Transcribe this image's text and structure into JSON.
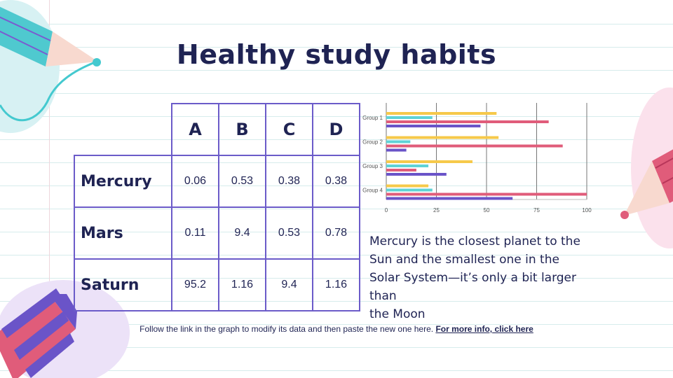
{
  "slide": {
    "title": "Healthy study habits",
    "description": [
      "Mercury is the closest planet to the",
      "Sun and the smallest one in the",
      "Solar System—it’s only a bit larger",
      "than",
      "the Moon"
    ],
    "footer_text": "Follow the link in the graph to modify its data and then paste the new one here. ",
    "footer_link": "For more info, click here"
  },
  "table": {
    "columns": [
      "A",
      "B",
      "C",
      "D"
    ],
    "rows": [
      {
        "label": "Mercury",
        "values": [
          "0.06",
          "0.53",
          "0.38",
          "0.38"
        ]
      },
      {
        "label": "Mars",
        "values": [
          "0.11",
          "9.4",
          "0.53",
          "0.78"
        ]
      },
      {
        "label": "Saturn",
        "values": [
          "95.2",
          "1.16",
          "9.4",
          "1.16"
        ]
      }
    ]
  },
  "colors": {
    "text": "#1f2353",
    "table_border": "#6b5bc9",
    "series": [
      "#f6c94a",
      "#5fd3d6",
      "#e05c7a",
      "#6a54c8"
    ]
  },
  "chart_data": {
    "type": "bar",
    "orientation": "horizontal",
    "categories": [
      "Group 1",
      "Group 2",
      "Group 3",
      "Group 4"
    ],
    "series": [
      {
        "values": [
          55,
          56,
          43,
          21
        ]
      },
      {
        "values": [
          23,
          12,
          21,
          23
        ]
      },
      {
        "values": [
          81,
          88,
          15,
          100
        ]
      },
      {
        "values": [
          47,
          10,
          30,
          63
        ]
      }
    ],
    "xticks": [
      "0",
      "25",
      "50",
      "75",
      "100"
    ],
    "xlim": [
      0,
      100
    ],
    "grid": "vertical"
  }
}
